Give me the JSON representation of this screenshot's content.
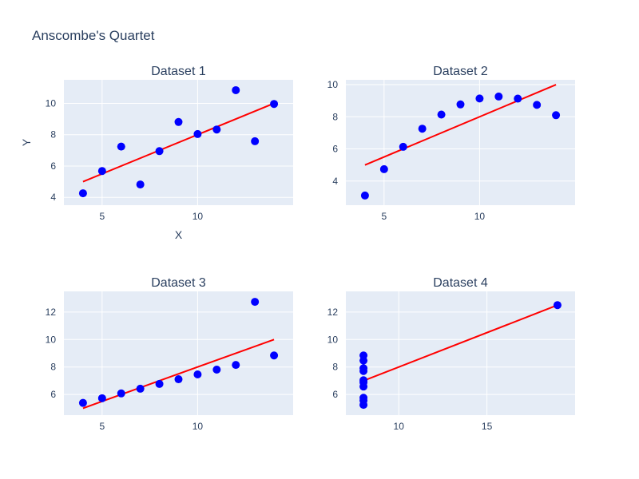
{
  "figure": {
    "title": "Anscombe's Quartet",
    "background": "#ffffff",
    "plot_background": "#e5ecf6",
    "grid_color": "#ffffff",
    "text_color": "#2a3f5f",
    "marker_color": "#0000ff",
    "line_color": "#ff0000"
  },
  "chart_data": [
    {
      "type": "scatter",
      "title": "Dataset 1",
      "xlabel": "X",
      "ylabel": "Y",
      "xlim": [
        3.0,
        15.0
      ],
      "ylim": [
        3.5,
        11.5
      ],
      "xticks": [
        5,
        10
      ],
      "yticks": [
        4,
        6,
        8,
        10
      ],
      "grid": true,
      "x": [
        10,
        8,
        13,
        9,
        11,
        14,
        6,
        4,
        12,
        7,
        5
      ],
      "y": [
        8.04,
        6.95,
        7.58,
        8.81,
        8.33,
        9.96,
        7.24,
        4.26,
        10.84,
        4.82,
        5.68
      ],
      "fit": {
        "x": [
          4,
          14
        ],
        "y": [
          5.0,
          10.0
        ]
      }
    },
    {
      "type": "scatter",
      "title": "Dataset 2",
      "xlabel": "",
      "ylabel": "",
      "xlim": [
        3.0,
        15.0
      ],
      "ylim": [
        2.5,
        10.3
      ],
      "xticks": [
        5,
        10
      ],
      "yticks": [
        4,
        6,
        8,
        10
      ],
      "grid": true,
      "x": [
        10,
        8,
        13,
        9,
        11,
        14,
        6,
        4,
        12,
        7,
        5
      ],
      "y": [
        9.14,
        8.14,
        8.74,
        8.77,
        9.26,
        8.1,
        6.13,
        3.1,
        9.13,
        7.26,
        4.74
      ],
      "fit": {
        "x": [
          4,
          14
        ],
        "y": [
          5.0,
          10.0
        ]
      }
    },
    {
      "type": "scatter",
      "title": "Dataset 3",
      "xlabel": "",
      "ylabel": "",
      "xlim": [
        3.0,
        15.0
      ],
      "ylim": [
        4.5,
        13.5
      ],
      "xticks": [
        5,
        10
      ],
      "yticks": [
        6,
        8,
        10,
        12
      ],
      "grid": true,
      "x": [
        10,
        8,
        13,
        9,
        11,
        14,
        6,
        4,
        12,
        7,
        5
      ],
      "y": [
        7.46,
        6.77,
        12.74,
        7.11,
        7.81,
        8.84,
        6.08,
        5.39,
        8.15,
        6.42,
        5.73
      ],
      "fit": {
        "x": [
          4,
          14
        ],
        "y": [
          5.0,
          10.0
        ]
      }
    },
    {
      "type": "scatter",
      "title": "Dataset 4",
      "xlabel": "",
      "ylabel": "",
      "xlim": [
        7.0,
        20.0
      ],
      "ylim": [
        4.5,
        13.5
      ],
      "xticks": [
        10,
        15
      ],
      "yticks": [
        6,
        8,
        10,
        12
      ],
      "grid": true,
      "x": [
        8,
        8,
        8,
        8,
        8,
        8,
        8,
        19,
        8,
        8,
        8
      ],
      "y": [
        6.58,
        5.76,
        7.71,
        8.84,
        8.47,
        7.04,
        5.25,
        12.5,
        5.56,
        7.91,
        6.89
      ],
      "fit": {
        "x": [
          8,
          19
        ],
        "y": [
          7.0,
          12.5
        ]
      }
    }
  ]
}
